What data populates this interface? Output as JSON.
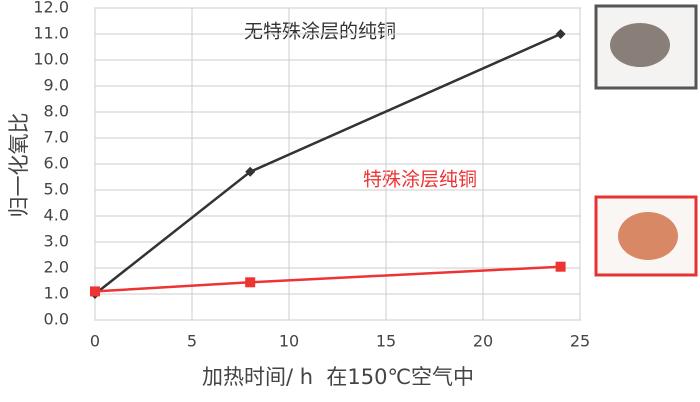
{
  "chart_data": {
    "type": "line",
    "x_label": "加热时间/ h  在150℃空气中",
    "y_label": "归一化氧比",
    "annotations": [
      "无特殊涂层的纯铜",
      "特殊涂层纯铜"
    ],
    "x": [
      0,
      8,
      24
    ],
    "series": [
      {
        "name": "无特殊涂层的纯铜",
        "color": "#333333",
        "marker": "diamond",
        "values": [
          1.0,
          5.7,
          11.0
        ]
      },
      {
        "name": "特殊涂层纯铜",
        "color": "#ee3333",
        "marker": "square",
        "values": [
          1.1,
          1.45,
          2.05
        ]
      }
    ],
    "xlim": [
      0,
      25
    ],
    "xticks": [
      0,
      5,
      10,
      15,
      20,
      25
    ],
    "ylim": [
      0,
      12
    ],
    "yticks": [
      {
        "value": 0,
        "label": "0.0"
      },
      {
        "value": 1,
        "label": "1.0"
      },
      {
        "value": 2,
        "label": "2.0"
      },
      {
        "value": 3,
        "label": "3.0"
      },
      {
        "value": 4,
        "label": "4.0"
      },
      {
        "value": 5,
        "label": "5.0"
      },
      {
        "value": 6,
        "label": "6.0"
      },
      {
        "value": 7,
        "label": "7.0"
      },
      {
        "value": 8,
        "label": "8.0"
      },
      {
        "value": 9,
        "label": "9.0"
      },
      {
        "value": 10,
        "label": "10.0"
      },
      {
        "value": 11,
        "label": "11.0"
      },
      {
        "value": 12,
        "label": "12.0"
      }
    ],
    "grid": true
  }
}
